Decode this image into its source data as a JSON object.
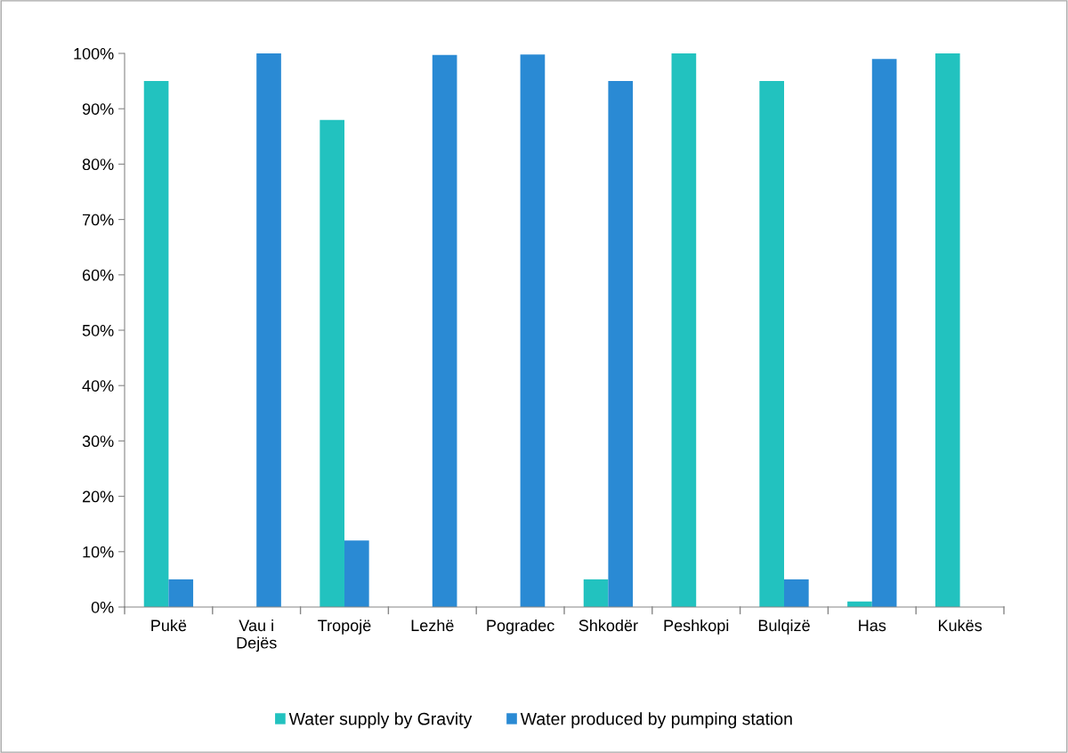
{
  "chart_data": {
    "type": "bar",
    "categories": [
      "Pukë",
      "Vau i\nDejës",
      "Tropojë",
      "Lezhë",
      "Pogradec",
      "Shkodër",
      "Peshkopi",
      "Bulqizë",
      "Has",
      "Kukës"
    ],
    "series": [
      {
        "name": "Water supply by Gravity",
        "color": "#22c2bf",
        "values": [
          95,
          0,
          88,
          0,
          0,
          5,
          100,
          95,
          1,
          100
        ]
      },
      {
        "name": "Water produced by pumping station",
        "color": "#2a8ad4",
        "values": [
          5,
          100,
          12,
          99.7,
          99.8,
          95,
          0,
          5,
          99,
          0
        ]
      }
    ],
    "ylim": [
      0,
      100
    ],
    "yticks": [
      {
        "value": 0,
        "label": "0%"
      },
      {
        "value": 10,
        "label": "10%"
      },
      {
        "value": 20,
        "label": "20%"
      },
      {
        "value": 30,
        "label": "30%"
      },
      {
        "value": 40,
        "label": "40%"
      },
      {
        "value": 50,
        "label": "50%"
      },
      {
        "value": 60,
        "label": "60%"
      },
      {
        "value": 70,
        "label": "70%"
      },
      {
        "value": 80,
        "label": "80%"
      },
      {
        "value": 90,
        "label": "90%"
      },
      {
        "value": 100,
        "label": "100%"
      }
    ],
    "grid": false,
    "legend": "bottom"
  }
}
